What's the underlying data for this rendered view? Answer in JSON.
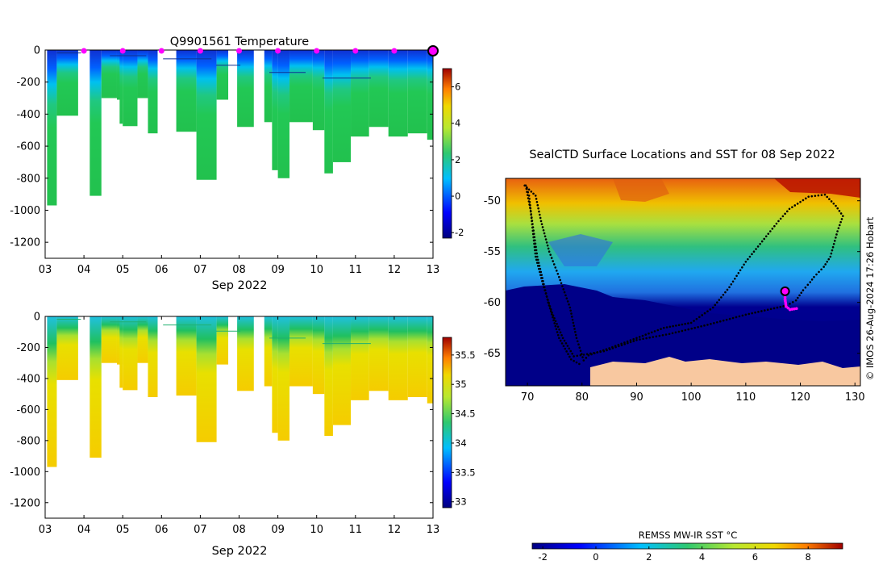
{
  "figure": {
    "credit": "© IMOS 26-Aug-2024 17:26 Hobart"
  },
  "chart_data": [
    {
      "id": "temperature",
      "type": "heatmap",
      "title": "Q9901561  Temperature",
      "xlabel": "Sep 2022",
      "x_ticks": [
        "03",
        "04",
        "05",
        "06",
        "07",
        "08",
        "09",
        "10",
        "11",
        "12",
        "13"
      ],
      "xlim": [
        3,
        13
      ],
      "y_ticks": [
        0,
        -200,
        -400,
        -600,
        -800,
        -1000,
        -1200
      ],
      "ylim": [
        -1300,
        0
      ],
      "colorbar": {
        "ticks": [
          -2,
          0,
          2,
          4,
          6
        ],
        "range": [
          -2.3,
          7.0
        ]
      },
      "marker_days": [
        4,
        5,
        6,
        7,
        8,
        9,
        10,
        11,
        12
      ],
      "current_day": 13,
      "marker_color": "#ff00ff",
      "profiles": [
        {
          "start": 3.05,
          "end": 3.3,
          "max_depth": 970
        },
        {
          "start": 3.3,
          "end": 3.85,
          "max_depth": 410
        },
        {
          "start": 4.15,
          "end": 4.45,
          "max_depth": 910
        },
        {
          "start": 4.45,
          "end": 4.85,
          "max_depth": 300
        },
        {
          "start": 4.85,
          "end": 5.0,
          "max_depth": 310
        },
        {
          "start": 4.92,
          "end": 5.0,
          "max_depth": 460
        },
        {
          "start": 5.0,
          "end": 5.38,
          "max_depth": 475
        },
        {
          "start": 5.38,
          "end": 5.65,
          "max_depth": 300
        },
        {
          "start": 5.65,
          "end": 5.9,
          "max_depth": 520
        },
        {
          "start": 6.38,
          "end": 6.9,
          "max_depth": 510
        },
        {
          "start": 6.9,
          "end": 7.42,
          "max_depth": 810
        },
        {
          "start": 7.42,
          "end": 7.72,
          "max_depth": 310
        },
        {
          "start": 7.95,
          "end": 8.38,
          "max_depth": 480
        },
        {
          "start": 8.65,
          "end": 8.85,
          "max_depth": 450
        },
        {
          "start": 8.85,
          "end": 9.0,
          "max_depth": 750
        },
        {
          "start": 9.0,
          "end": 9.3,
          "max_depth": 800
        },
        {
          "start": 9.3,
          "end": 9.9,
          "max_depth": 450
        },
        {
          "start": 9.9,
          "end": 10.2,
          "max_depth": 500
        },
        {
          "start": 10.2,
          "end": 10.42,
          "max_depth": 770
        },
        {
          "start": 10.42,
          "end": 10.88,
          "max_depth": 700
        },
        {
          "start": 10.88,
          "end": 11.35,
          "max_depth": 540
        },
        {
          "start": 11.35,
          "end": 11.85,
          "max_depth": 480
        },
        {
          "start": 11.85,
          "end": 12.35,
          "max_depth": 540
        },
        {
          "start": 12.35,
          "end": 12.85,
          "max_depth": 520
        },
        {
          "start": 12.85,
          "end": 13.0,
          "max_depth": 560
        }
      ]
    },
    {
      "id": "salinity",
      "type": "heatmap",
      "title": "",
      "xlabel": "Sep 2022",
      "x_ticks": [
        "03",
        "04",
        "05",
        "06",
        "07",
        "08",
        "09",
        "10",
        "11",
        "12",
        "13"
      ],
      "xlim": [
        3,
        13
      ],
      "y_ticks": [
        0,
        -200,
        -400,
        -600,
        -800,
        -1000,
        -1200
      ],
      "ylim": [
        -1300,
        0
      ],
      "colorbar": {
        "ticks": [
          33,
          33.5,
          34,
          34.5,
          35,
          35.5
        ],
        "range": [
          32.9,
          35.8
        ]
      },
      "profiles_same_as": "temperature"
    },
    {
      "id": "sst_map",
      "type": "heatmap",
      "title": "SealCTD Surface Locations and SST for 08 Sep 2022",
      "x_ticks": [
        70,
        80,
        90,
        100,
        110,
        120,
        130
      ],
      "xlim": [
        66,
        131
      ],
      "y_ticks": [
        -50,
        -55,
        -60,
        -65
      ],
      "ylim": [
        -68.2,
        -47.8
      ],
      "colorbar_label": "REMSS MW-IR SST °C",
      "colorbar": {
        "ticks": [
          -2,
          0,
          2,
          4,
          6,
          8
        ],
        "range": [
          -2.4,
          9.3
        ]
      },
      "track": [
        [
          69.5,
          -48.5
        ],
        [
          71.5,
          -49.5
        ],
        [
          72.5,
          -52
        ],
        [
          74,
          -55
        ],
        [
          75.8,
          -57.5
        ],
        [
          77.8,
          -60.5
        ],
        [
          79,
          -63.5
        ],
        [
          80.3,
          -65.7
        ],
        [
          81.2,
          -65.2
        ],
        [
          85,
          -64.5
        ],
        [
          90,
          -63.5
        ],
        [
          95,
          -62.5
        ],
        [
          100,
          -62
        ],
        [
          104,
          -60.5
        ],
        [
          107,
          -58.5
        ],
        [
          110,
          -56
        ],
        [
          113,
          -54
        ],
        [
          116,
          -52
        ],
        [
          118,
          -50.8
        ],
        [
          121.5,
          -49.6
        ],
        [
          124.5,
          -49.4
        ],
        [
          126.5,
          -50.5
        ],
        [
          127.8,
          -51.5
        ],
        [
          126.8,
          -53
        ],
        [
          125.5,
          -55.5
        ],
        [
          124.3,
          -56.5
        ],
        [
          122.5,
          -57.5
        ],
        [
          121.8,
          -58
        ],
        [
          120.5,
          -58.8
        ],
        [
          119.2,
          -59.8
        ],
        [
          117.5,
          -60.3
        ],
        [
          110,
          -61.2
        ],
        [
          103,
          -62.2
        ],
        [
          96,
          -63.1
        ],
        [
          90,
          -63.7
        ],
        [
          84,
          -64.8
        ],
        [
          78.5,
          -65.3
        ],
        [
          76.5,
          -63.5
        ],
        [
          74.5,
          -61
        ],
        [
          73,
          -58.5
        ],
        [
          71.5,
          -55.5
        ],
        [
          70.8,
          -52
        ],
        [
          70.3,
          -49.5
        ],
        [
          69.7,
          -48.5
        ],
        [
          70.6,
          -51
        ],
        [
          71.8,
          -55.5
        ],
        [
          73.8,
          -60
        ],
        [
          75.8,
          -63.5
        ],
        [
          78,
          -65.6
        ],
        [
          80,
          -66.2
        ]
      ],
      "recent_track": [
        [
          117.2,
          -58.9
        ],
        [
          117.2,
          -59.7
        ],
        [
          117.4,
          -60.4
        ],
        [
          118.1,
          -60.7
        ],
        [
          119.3,
          -60.6
        ]
      ],
      "last_position": [
        117.2,
        -58.9
      ]
    }
  ]
}
